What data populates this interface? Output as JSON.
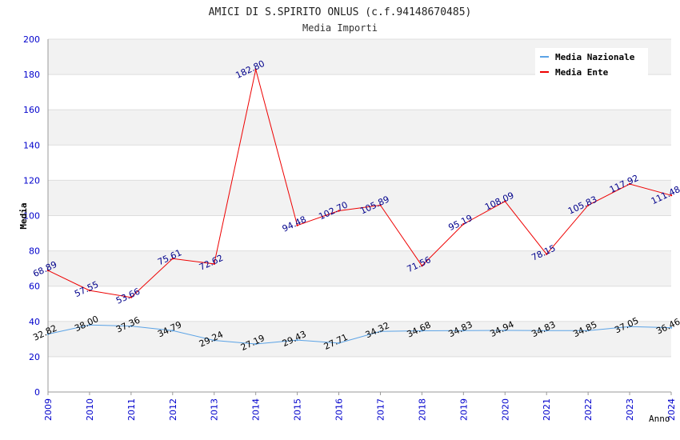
{
  "chart_data": {
    "type": "line",
    "title": "AMICI DI S.SPIRITO ONLUS (c.f.94148670485)",
    "subtitle": "Media Importi",
    "xlabel": "Anno",
    "ylabel": "Media",
    "ylim": [
      0,
      200
    ],
    "yticks": [
      0,
      20,
      40,
      60,
      80,
      100,
      120,
      140,
      160,
      180,
      200
    ],
    "grid": true,
    "legend_position": "top-right",
    "x": [
      "2009",
      "2010",
      "2011",
      "2012",
      "2013",
      "2014",
      "2015",
      "2016",
      "2017",
      "2018",
      "2019",
      "2020",
      "2021",
      "2022",
      "2023",
      "2024"
    ],
    "series": [
      {
        "name": "Media Nazionale",
        "color": "#5ba3e6",
        "label_color": "#000000",
        "values": [
          32.82,
          38.0,
          37.36,
          34.79,
          29.24,
          27.19,
          29.43,
          27.71,
          34.32,
          34.68,
          34.83,
          34.94,
          34.83,
          34.85,
          37.05,
          36.46
        ],
        "labels": [
          "32.82",
          "38.00",
          "37.36",
          "34.79",
          "29.24",
          "27.19",
          "29.43",
          "27.71",
          "34.32",
          "34.68",
          "34.83",
          "34.94",
          "34.83",
          "34.85",
          "37.05",
          "36.46"
        ]
      },
      {
        "name": "Media Ente",
        "color": "#ee0000",
        "label_color": "#00008b",
        "values": [
          68.89,
          57.55,
          53.66,
          75.61,
          72.62,
          182.8,
          94.48,
          102.7,
          105.89,
          71.56,
          95.19,
          108.09,
          78.15,
          105.83,
          117.92,
          111.48
        ],
        "labels": [
          "68.89",
          "57.55",
          "53.66",
          "75.61",
          "72.62",
          "182.80",
          "94.48",
          "102.70",
          "105.89",
          "71.56",
          "95.19",
          "108.09",
          "78.15",
          "105.83",
          "117.92",
          "111.48"
        ]
      }
    ]
  },
  "colors": {
    "axis_text": "#0000cc",
    "band": "#f2f2f2",
    "gridline": "#dddddd",
    "axis_line": "#999999"
  }
}
